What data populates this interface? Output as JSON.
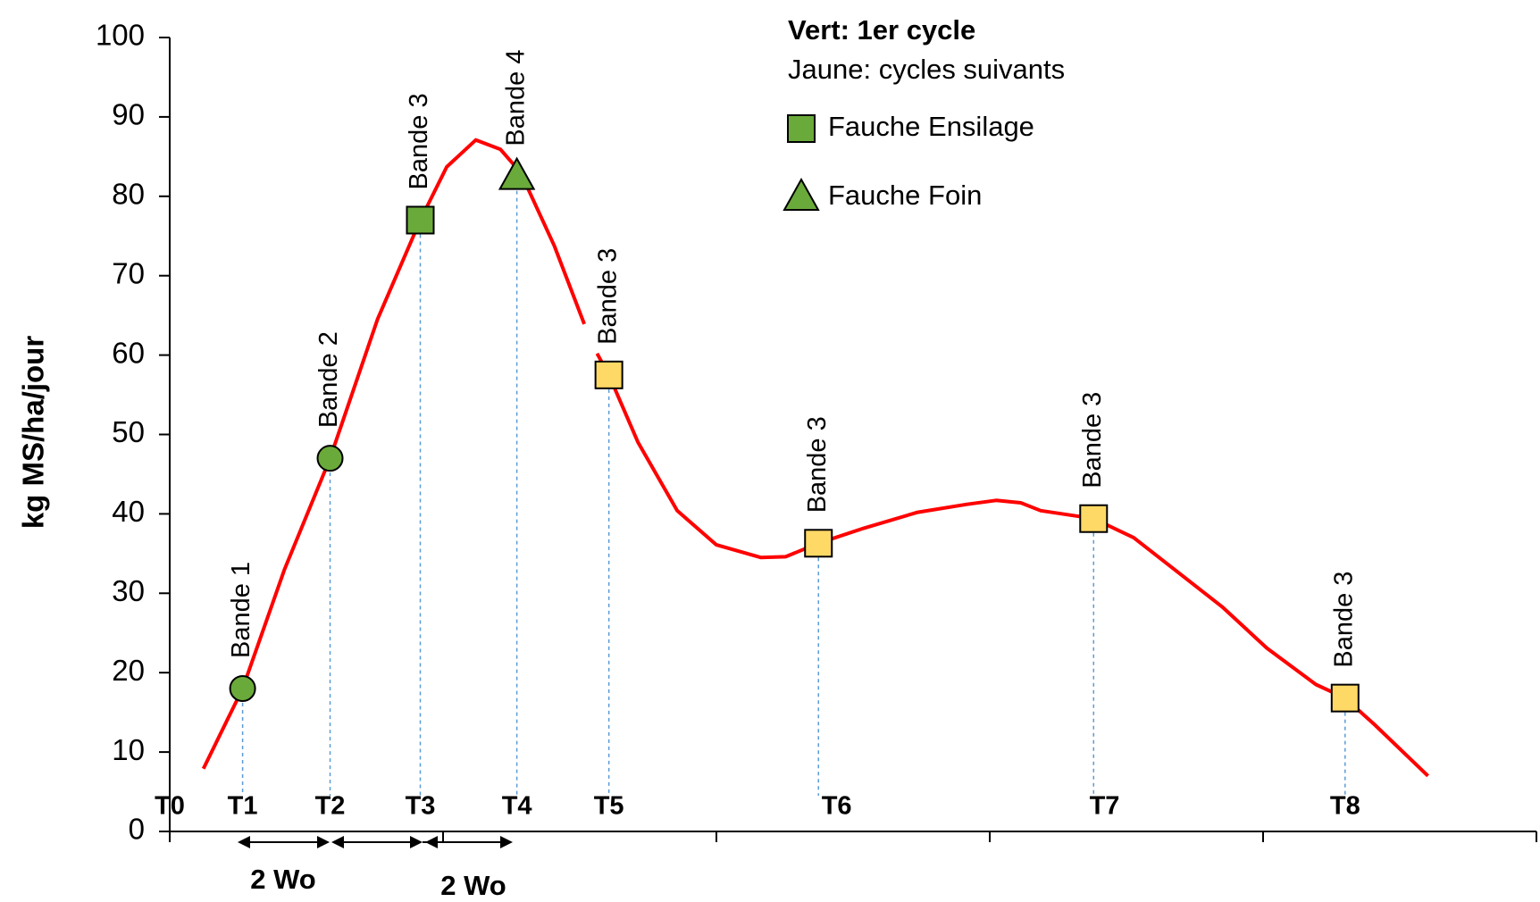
{
  "chart_data": {
    "type": "line",
    "ylabel": "kg MS/ha/jour",
    "ylim": [
      0,
      100
    ],
    "yticks": [
      0,
      10,
      20,
      30,
      40,
      50,
      60,
      70,
      80,
      90,
      100
    ],
    "xlim": [
      0,
      15
    ],
    "xticks": [
      0,
      3,
      6,
      9,
      12,
      15
    ],
    "series": [
      {
        "color": "#ff0000",
        "x": [
          0.37,
          0.8,
          1.26,
          1.76,
          2.28,
          2.75,
          3.04,
          3.36,
          3.63,
          3.85,
          4.22,
          4.55,
          null,
          4.69,
          4.82,
          5.14,
          5.57,
          6.0,
          6.49,
          6.76,
          7.12,
          7.62,
          8.21,
          8.75,
          9.07,
          9.34,
          9.56,
          10.14,
          10.58,
          10.96,
          11.55,
          12.04,
          12.58,
          12.9,
          13.22,
          13.81
        ],
        "values": [
          7.9,
          18,
          33,
          47,
          64.5,
          77,
          83.7,
          87.1,
          85.9,
          83,
          73.8,
          63.9,
          null,
          60.2,
          57.5,
          49,
          40.4,
          36.1,
          34.5,
          34.6,
          36.3,
          38.2,
          40.2,
          41.2,
          41.7,
          41.4,
          40.4,
          39.4,
          37,
          33.6,
          28.3,
          23.1,
          18.5,
          16.8,
          13.5,
          7
        ]
      }
    ],
    "markers": {
      "x": [
        0.8,
        1.76,
        2.75,
        3.81,
        4.82,
        7.12,
        10.14,
        12.9
      ],
      "values": [
        18,
        47,
        77,
        82.5,
        57.5,
        36.3,
        39.4,
        16.8
      ],
      "shapes": [
        "circle",
        "circle",
        "square",
        "triangle",
        "square",
        "square",
        "square",
        "square"
      ],
      "colors": [
        "#6aaa3a",
        "#6aaa3a",
        "#6aaa3a",
        "#6aaa3a",
        "#ffd966",
        "#ffd966",
        "#ffd966",
        "#ffd966"
      ],
      "labels": [
        "Bande 1",
        "Bande 2",
        "Bande 3",
        "Bande 4",
        "Bande 3",
        "Bande 3",
        "Bande 3",
        "Bande 3"
      ]
    },
    "time_labels": {
      "labels": [
        "T0",
        "T1",
        "T2",
        "T3",
        "T4",
        "T5",
        "T6",
        "T7",
        "T8"
      ],
      "x": [
        0,
        0.8,
        1.76,
        2.75,
        3.81,
        4.82,
        7.32,
        10.26,
        12.9
      ]
    },
    "legend_title": [
      "Vert: 1er cycle",
      "Jaune: cycles suivants"
    ],
    "legend": [
      {
        "name": "Fauche Ensilage",
        "shape": "square",
        "color": "#6aaa3a"
      },
      {
        "name": "Fauche Foin",
        "shape": "triangle",
        "color": "#6aaa3a"
      }
    ],
    "annotations": [
      "2 Wo",
      "2 Wo"
    ]
  }
}
